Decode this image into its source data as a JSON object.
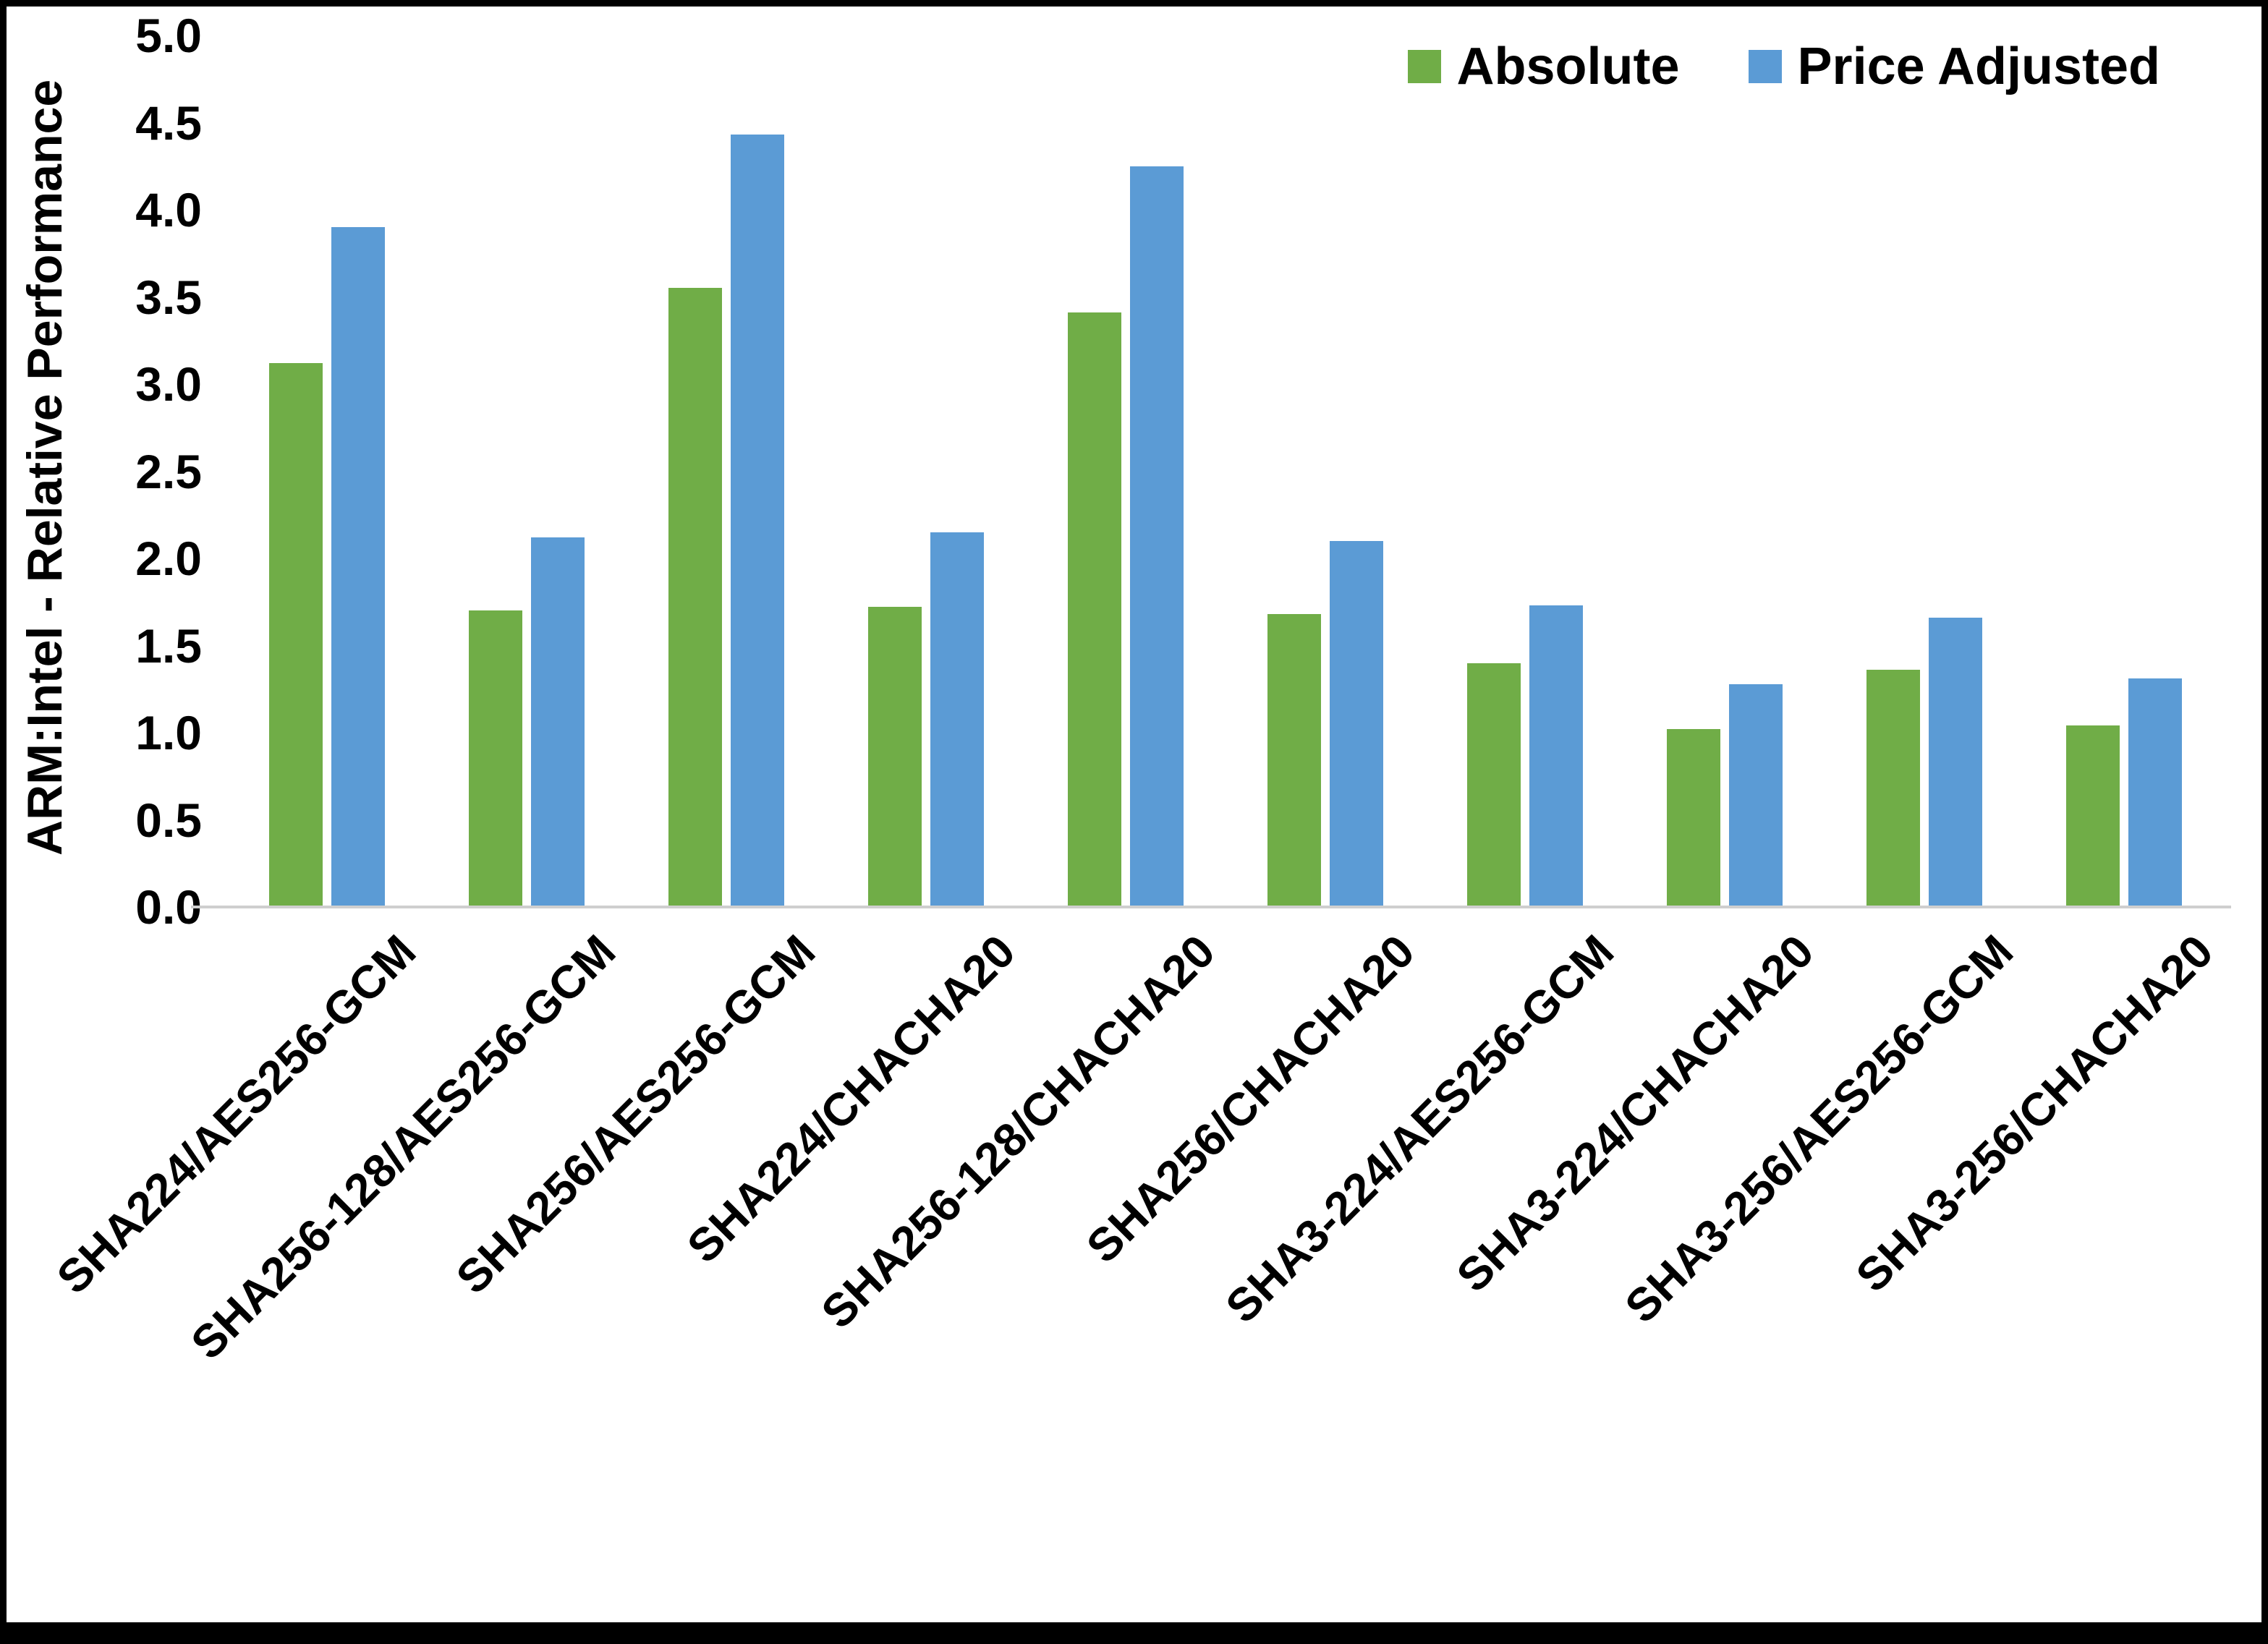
{
  "chart_data": {
    "type": "bar",
    "title": "",
    "xlabel": "",
    "ylabel": "ARM:Intel - Relative Performance",
    "ylim": [
      0,
      5
    ],
    "y_tick_step": 0.5,
    "y_ticks": [
      "0.0",
      "0.5",
      "1.0",
      "1.5",
      "2.0",
      "2.5",
      "3.0",
      "3.5",
      "4.0",
      "4.5",
      "5.0"
    ],
    "grid": false,
    "legend_position": "top-right",
    "categories": [
      "SHA224/AES256-GCM",
      "SHA256-128/AES256-GCM",
      "SHA256/AES256-GCM",
      "SHA224/CHACHA20",
      "SHA256-128/CHACHA20",
      "SHA256/CHACHA20",
      "SHA3-224/AES256-GCM",
      "SHA3-224/CHACHA20",
      "SHA3-256/AES256-GCM",
      "SHA3-256/CHACHA20"
    ],
    "series": [
      {
        "name": "Absolute",
        "color": "#70AD47",
        "values": [
          3.12,
          1.7,
          3.55,
          1.72,
          3.41,
          1.68,
          1.4,
          1.02,
          1.36,
          1.04
        ]
      },
      {
        "name": "Price Adjusted",
        "color": "#5B9BD5",
        "values": [
          3.9,
          2.12,
          4.43,
          2.15,
          4.25,
          2.1,
          1.73,
          1.28,
          1.66,
          1.31
        ]
      }
    ]
  },
  "frame": {
    "background": "#ffffff",
    "border_color": "#000000",
    "axis_line_color": "#cfcfcf"
  }
}
